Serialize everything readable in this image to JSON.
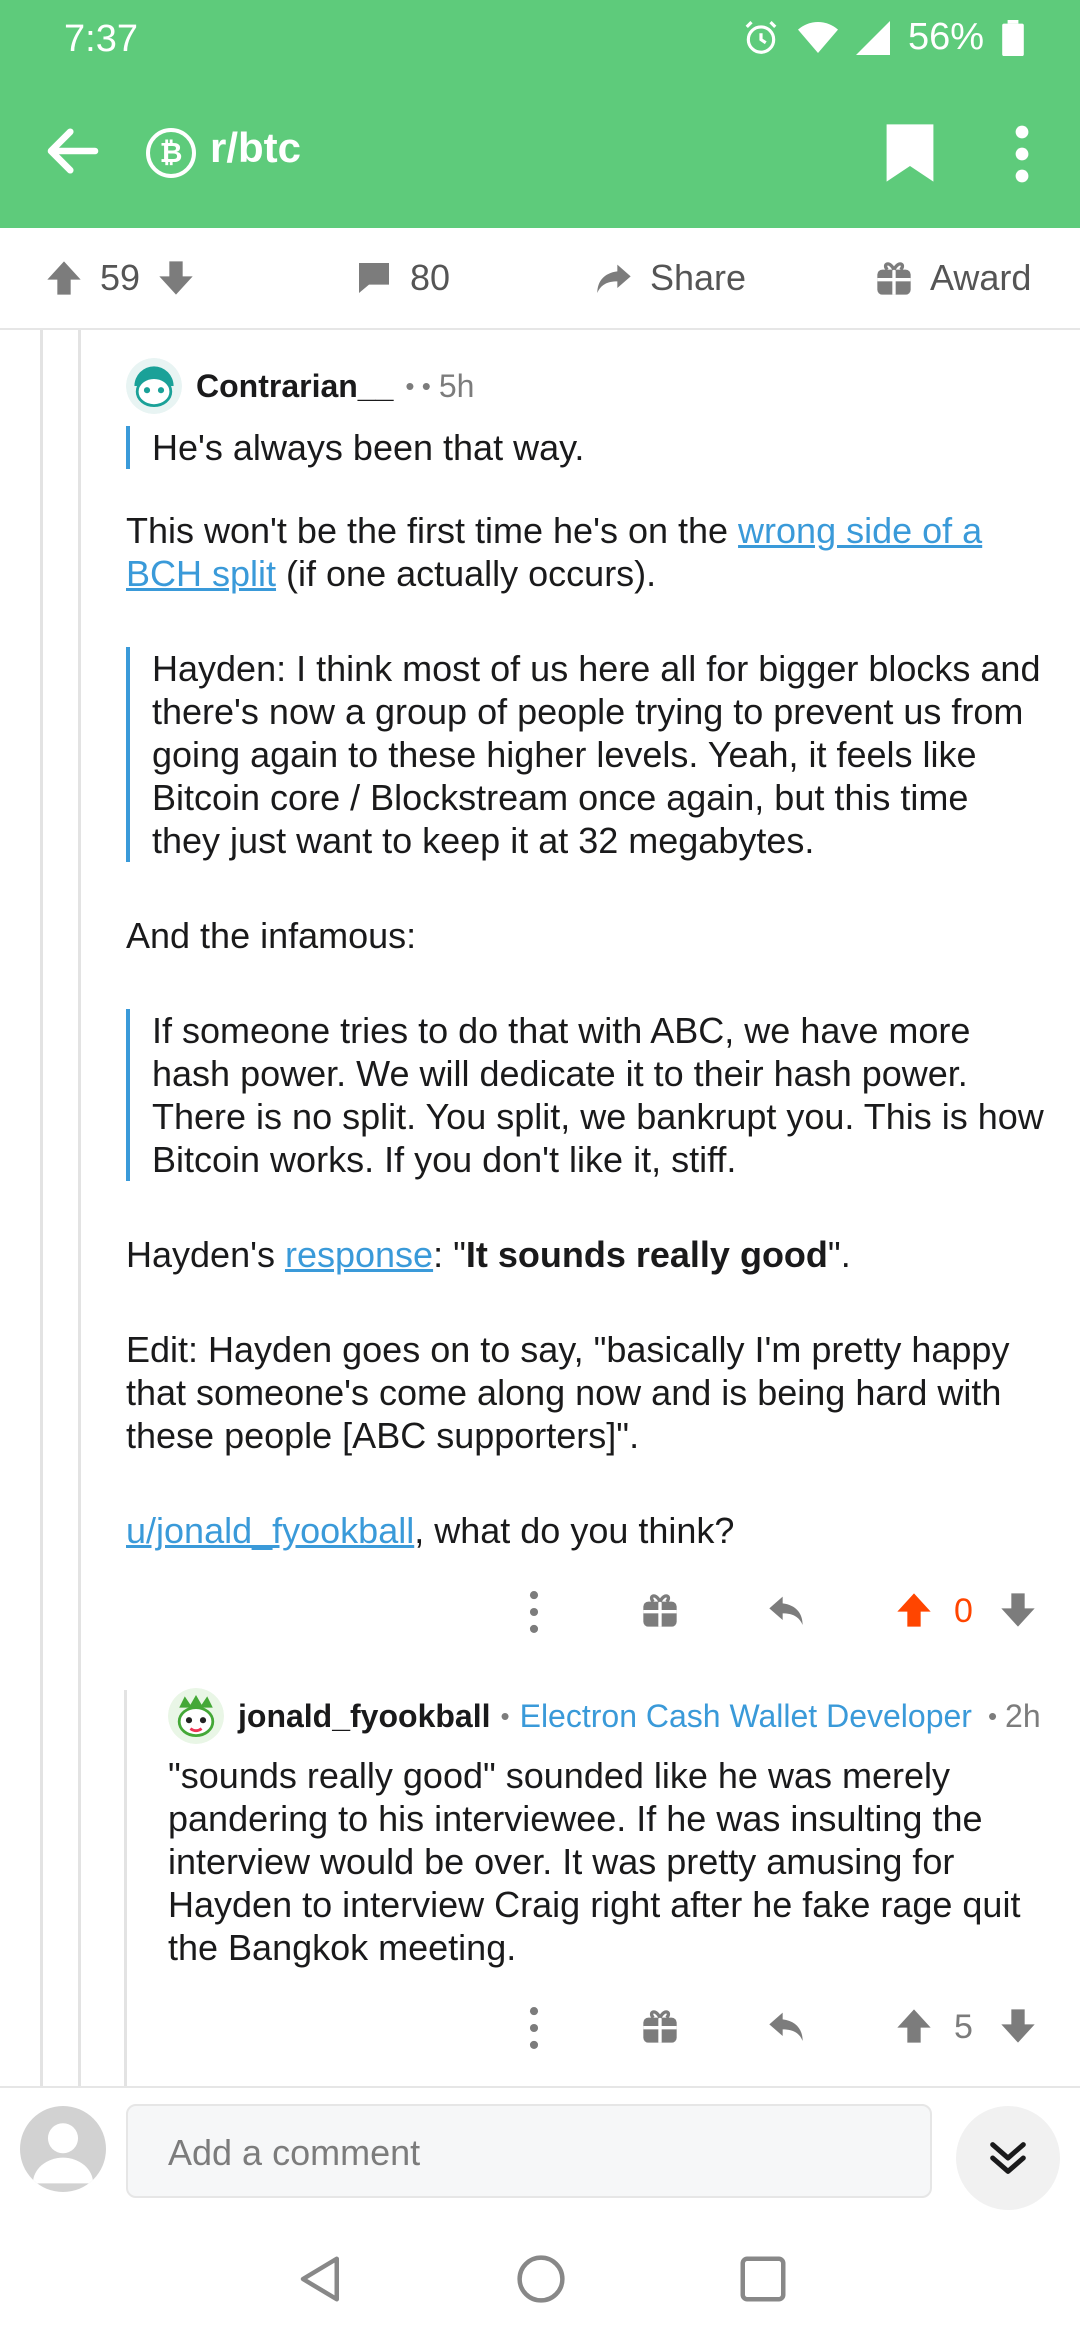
{
  "status": {
    "time": "7:37",
    "battery": "56%"
  },
  "appbar": {
    "subreddit": "r/btc",
    "subreddit_icon": "₿"
  },
  "actions": {
    "upvotes": "59",
    "comments": "80",
    "share_label": "Share",
    "award_label": "Award"
  },
  "comment1": {
    "author": "Contrarian__",
    "dots": "•  •",
    "age": "5h",
    "quote1": "He's always been that way.",
    "p1_before": "This won't be the first time he's on the ",
    "p1_link": "wrong side of a BCH split",
    "p1_after": " (if one actually occurs).",
    "quote2": "Hayden: I think most of us here all for bigger blocks and there's now a group of people trying to prevent us from going again to these higher levels. Yeah, it feels like Bitcoin core / Blockstream once again, but this time they just want to keep it at 32 megabytes.",
    "p2": "And the infamous:",
    "quote3": "If someone tries to do that with ABC, we have more hash power. We will dedicate it to their hash power. There is no split. You split, we bankrupt you. This is how Bitcoin works. If you don't like it, stiff.",
    "p3_before": "Hayden's ",
    "p3_link": "response",
    "p3_mid": ": \"",
    "p3_bold": "It sounds really good",
    "p3_after": "\".",
    "p4": "Edit: Hayden goes on to say, \"basically I'm pretty happy that someone's come along now and is being hard with these people [ABC supporters]\".",
    "p5_link": "u/jonald_fyookball",
    "p5_after": ", what do you think?",
    "score": "0"
  },
  "comment2": {
    "author": "jonald_fyookball",
    "flair": "Electron Cash Wallet Developer",
    "age": "2h",
    "body": "\"sounds really good\" sounded like he was merely pandering to his interviewee. If he was insulting the interview would be over. It was pretty amusing for Hayden to interview Craig right after he fake rage quit the Bangkok meeting.",
    "score": "5"
  },
  "bottom": {
    "placeholder": "Add a comment"
  },
  "colors": {
    "header_green": "#5ecb7b",
    "link_blue": "#3a9ad9",
    "upvote_orange": "#ff4500"
  }
}
